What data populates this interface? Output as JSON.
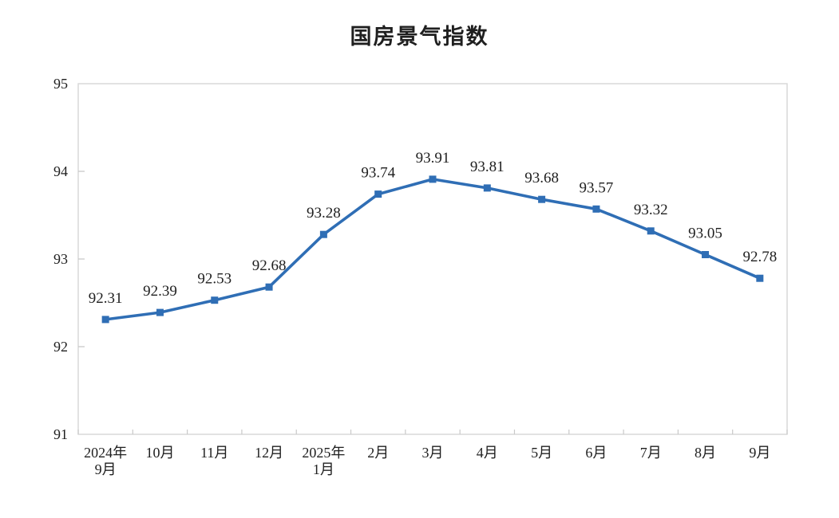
{
  "page": {
    "background": "#ffffff"
  },
  "chart_data": {
    "type": "line",
    "title": "国房景气指数",
    "categories": [
      "2024年\n9月",
      "10月",
      "11月",
      "12月",
      "2025年\n1月",
      "2月",
      "3月",
      "4月",
      "5月",
      "6月",
      "7月",
      "8月",
      "9月"
    ],
    "series": [
      {
        "name": "国房景气指数",
        "values": [
          92.31,
          92.39,
          92.53,
          92.68,
          93.28,
          93.74,
          93.91,
          93.81,
          93.68,
          93.57,
          93.32,
          93.05,
          92.78
        ],
        "data_labels": [
          "92.31",
          "92.39",
          "92.53",
          "92.68",
          "93.28",
          "93.74",
          "93.91",
          "93.81",
          "93.68",
          "93.57",
          "93.32",
          "93.05",
          "92.78"
        ],
        "marker": "square"
      }
    ],
    "xlabel": "",
    "ylabel": "",
    "ylim": [
      91,
      95
    ],
    "y_ticks": [
      91,
      92,
      93,
      94,
      95
    ],
    "grid": false,
    "legend": "none",
    "colors": {
      "line": "#2f6eb5",
      "label_text": "#1f1f1f",
      "axis_text": "#1f1f1f",
      "axis": "#c9c9c9",
      "plot_border": "#d6d6d6",
      "title_text": "#1f1f1f"
    }
  }
}
